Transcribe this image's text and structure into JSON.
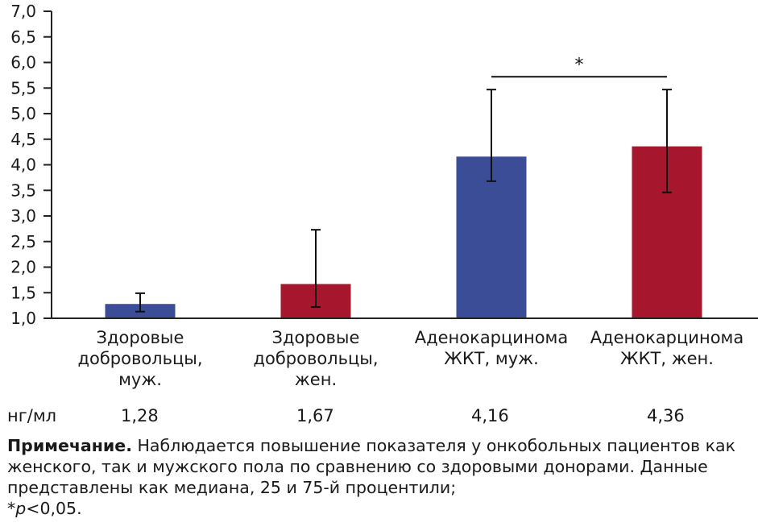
{
  "chart_data": {
    "type": "bar",
    "categories": [
      "Здоровые\nдобровольцы,\nмуж.",
      "Здоровые\nдобровольцы,\nжен.",
      "Аденокарцинома\nЖКТ, муж.",
      "Аденокарцинома\nЖКТ, жен."
    ],
    "values": [
      1.28,
      1.67,
      4.16,
      4.36
    ],
    "value_labels": [
      "1,28",
      "1,67",
      "4,16",
      "4,36"
    ],
    "error_low": [
      1.13,
      1.22,
      3.68,
      3.46
    ],
    "error_high": [
      1.49,
      2.73,
      5.47,
      5.47
    ],
    "colors": [
      "#3b4d97",
      "#a6162c",
      "#3b4d97",
      "#a6162c"
    ],
    "ylim": [
      1.0,
      7.0
    ],
    "yticks": [
      1.0,
      1.5,
      2.0,
      2.5,
      3.0,
      3.5,
      4.0,
      4.5,
      5.0,
      5.5,
      6.0,
      6.5,
      7.0
    ],
    "ytick_labels": [
      "1,0",
      "1,5",
      "2,0",
      "2,5",
      "3,0",
      "3,5",
      "4,0",
      "4,5",
      "5,0",
      "5,5",
      "6,0",
      "6,5",
      "7,0"
    ],
    "unit_label": "нг/мл",
    "significance": {
      "between": [
        2,
        3
      ],
      "label": "*",
      "level": 5.72
    },
    "title": "",
    "xlabel": "",
    "ylabel": "",
    "grid": false
  },
  "note": {
    "bold": "Примечание.",
    "text": " Наблюдается повышение показателя у онкобольных пациентов как женского, так и мужского пола по сравнению со здоровыми донорами. Данные представлены как медиана, 25 и 75-й процентили;",
    "p_prefix": "*",
    "p_italic": "p",
    "p_suffix": "<0,05."
  }
}
